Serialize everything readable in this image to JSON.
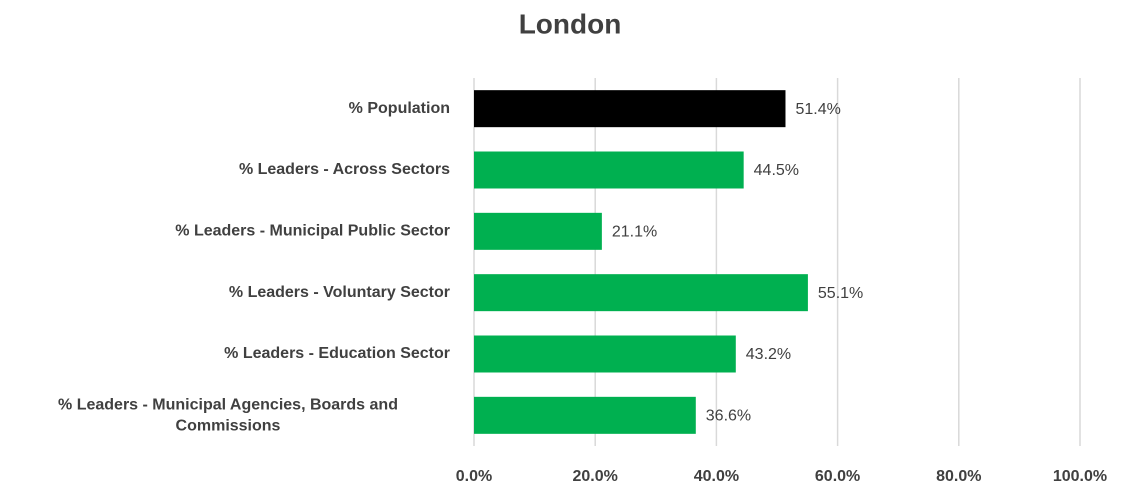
{
  "chart_data": {
    "type": "barh",
    "title": "London",
    "categories": [
      "% Population",
      "% Leaders - Across Sectors",
      "% Leaders - Municipal Public Sector",
      "% Leaders - Voluntary Sector",
      "% Leaders - Education Sector",
      "% Leaders - Municipal Agencies, Boards and Commissions"
    ],
    "values": [
      51.4,
      44.5,
      21.1,
      55.1,
      43.2,
      36.6
    ],
    "value_labels": [
      "51.4%",
      "44.5%",
      "21.1%",
      "55.1%",
      "43.2%",
      "36.6%"
    ],
    "colors": [
      "#000000",
      "#00b050",
      "#00b050",
      "#00b050",
      "#00b050",
      "#00b050"
    ],
    "xlim": [
      0,
      100
    ],
    "xticks": [
      {
        "value": 0,
        "label": "0.0%"
      },
      {
        "value": 20,
        "label": "20.0%"
      },
      {
        "value": 40,
        "label": "40.0%"
      },
      {
        "value": 60,
        "label": "60.0%"
      },
      {
        "value": 80,
        "label": "80.0%"
      },
      {
        "value": 100,
        "label": "100.0%"
      }
    ],
    "grid": true
  }
}
